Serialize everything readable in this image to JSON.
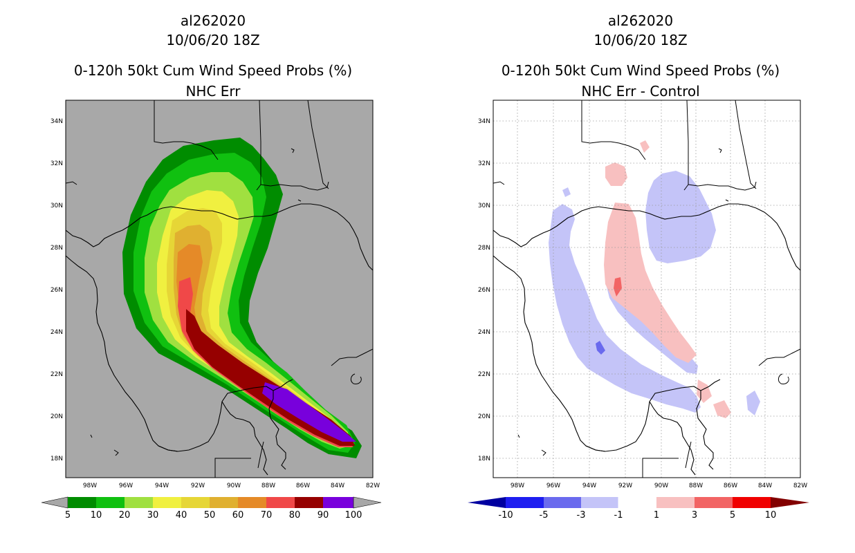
{
  "colors": {
    "land_fill": "#a8a8a8",
    "coast": "#000000",
    "grid": "#9a9a9a",
    "prob": {
      "5": "#008c00",
      "10": "#10c010",
      "20": "#a0e040",
      "30": "#f0f040",
      "40": "#e6d636",
      "50": "#e0b030",
      "60": "#e58a28",
      "70": "#f04848",
      "80": "#960000",
      "90": "#7800dc",
      "100": "#7800dc"
    },
    "diff": {
      "n10": "#0000a0",
      "n5": "#1e1ef0",
      "n3": "#6a6aee",
      "n1": "#c4c4f8",
      "zero": "#ffffff",
      "p1": "#f8c0c0",
      "p3": "#f26464",
      "p5": "#f00000",
      "p10": "#820000"
    }
  },
  "left_panel": {
    "title_line1": "al262020",
    "title_line2": "10/06/20 18Z",
    "title_line3": "0-120h 50kt Cum Wind Speed Probs (%)",
    "title_line4": "NHC Err",
    "y_ticks": [
      "34N",
      "32N",
      "30N",
      "28N",
      "26N",
      "24N",
      "22N",
      "20N",
      "18N"
    ],
    "x_ticks": [
      "98W",
      "96W",
      "94W",
      "92W",
      "90W",
      "88W",
      "86W",
      "84W",
      "82W"
    ],
    "colorbar_labels": [
      "5",
      "10",
      "20",
      "30",
      "40",
      "50",
      "60",
      "70",
      "80",
      "90",
      "100"
    ]
  },
  "right_panel": {
    "title_line1": "al262020",
    "title_line2": "10/06/20 18Z",
    "title_line3": "0-120h 50kt Cum Wind Speed Probs (%)",
    "title_line4": "NHC Err - Control",
    "y_ticks": [
      "34N",
      "32N",
      "30N",
      "28N",
      "26N",
      "24N",
      "22N",
      "20N",
      "18N"
    ],
    "x_ticks": [
      "98W",
      "96W",
      "94W",
      "92W",
      "90W",
      "88W",
      "86W",
      "84W",
      "82W"
    ],
    "colorbar_labels": [
      "-10",
      "-5",
      "-3",
      "-1",
      "1",
      "3",
      "5",
      "10"
    ]
  }
}
